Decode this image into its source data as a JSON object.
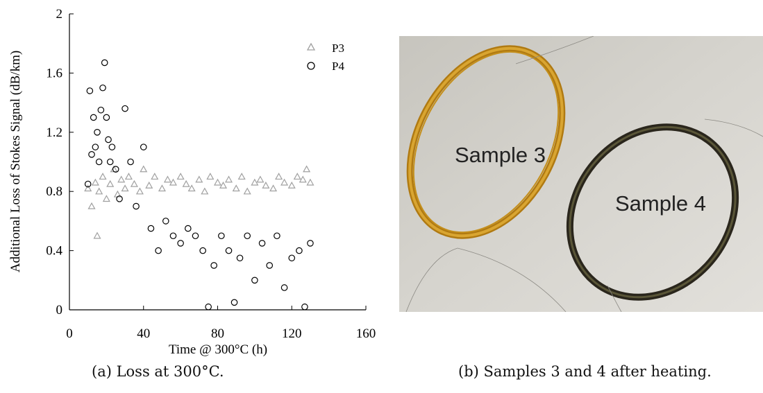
{
  "figure_a": {
    "caption": "(a) Loss at 300°C.",
    "chart_data": {
      "type": "scatter",
      "title": "",
      "xlabel": "Time @ 300°C (h)",
      "ylabel": "Additional Loss of Stokes Signal (dB/km)",
      "xlim": [
        0,
        160
      ],
      "ylim": [
        0,
        2
      ],
      "xticks": [
        0,
        40,
        80,
        120,
        160
      ],
      "yticks": [
        0,
        0.4,
        0.8,
        1.2,
        1.6,
        2
      ],
      "ytick_labels": [
        "0",
        "0.4",
        "0.8",
        "1.2",
        "1.6",
        "2"
      ],
      "grid": false,
      "legend_position": "top-right",
      "series": [
        {
          "name": "P3",
          "marker": "triangle",
          "color": "#a0a0a0",
          "x": [
            10,
            12,
            14,
            15,
            16,
            18,
            20,
            22,
            24,
            26,
            28,
            30,
            32,
            35,
            38,
            40,
            43,
            46,
            50,
            53,
            56,
            60,
            63,
            66,
            70,
            73,
            76,
            80,
            83,
            86,
            90,
            93,
            96,
            100,
            103,
            106,
            110,
            113,
            116,
            120,
            123,
            126,
            128,
            130
          ],
          "y": [
            0.82,
            0.7,
            0.86,
            0.5,
            0.8,
            0.9,
            0.75,
            0.85,
            0.95,
            0.78,
            0.88,
            0.82,
            0.9,
            0.85,
            0.8,
            0.95,
            0.84,
            0.9,
            0.82,
            0.88,
            0.86,
            0.9,
            0.85,
            0.82,
            0.88,
            0.8,
            0.9,
            0.86,
            0.84,
            0.88,
            0.82,
            0.9,
            0.8,
            0.86,
            0.88,
            0.84,
            0.82,
            0.9,
            0.86,
            0.84,
            0.9,
            0.88,
            0.95,
            0.86
          ]
        },
        {
          "name": "P4",
          "marker": "circle",
          "color": "#000000",
          "x": [
            10,
            11,
            12,
            13,
            14,
            15,
            16,
            17,
            18,
            19,
            20,
            21,
            22,
            23,
            25,
            27,
            30,
            33,
            36,
            40,
            44,
            48,
            52,
            56,
            60,
            64,
            68,
            72,
            75,
            78,
            82,
            86,
            89,
            92,
            96,
            100,
            104,
            108,
            112,
            116,
            120,
            124,
            127,
            130
          ],
          "y": [
            0.85,
            1.48,
            1.05,
            1.3,
            1.1,
            1.2,
            1.0,
            1.35,
            1.5,
            1.67,
            1.3,
            1.15,
            1.0,
            1.1,
            0.95,
            0.75,
            1.36,
            1.0,
            0.7,
            1.1,
            0.55,
            0.4,
            0.6,
            0.5,
            0.45,
            0.55,
            0.5,
            0.4,
            0.02,
            0.3,
            0.5,
            0.4,
            0.05,
            0.35,
            0.5,
            0.2,
            0.45,
            0.3,
            0.5,
            0.15,
            0.35,
            0.4,
            0.02,
            0.45
          ]
        }
      ]
    }
  },
  "figure_b": {
    "caption": "(b) Samples 3 and 4 after heating.",
    "photo_labels": [
      "Sample 3",
      "Sample 4"
    ]
  }
}
